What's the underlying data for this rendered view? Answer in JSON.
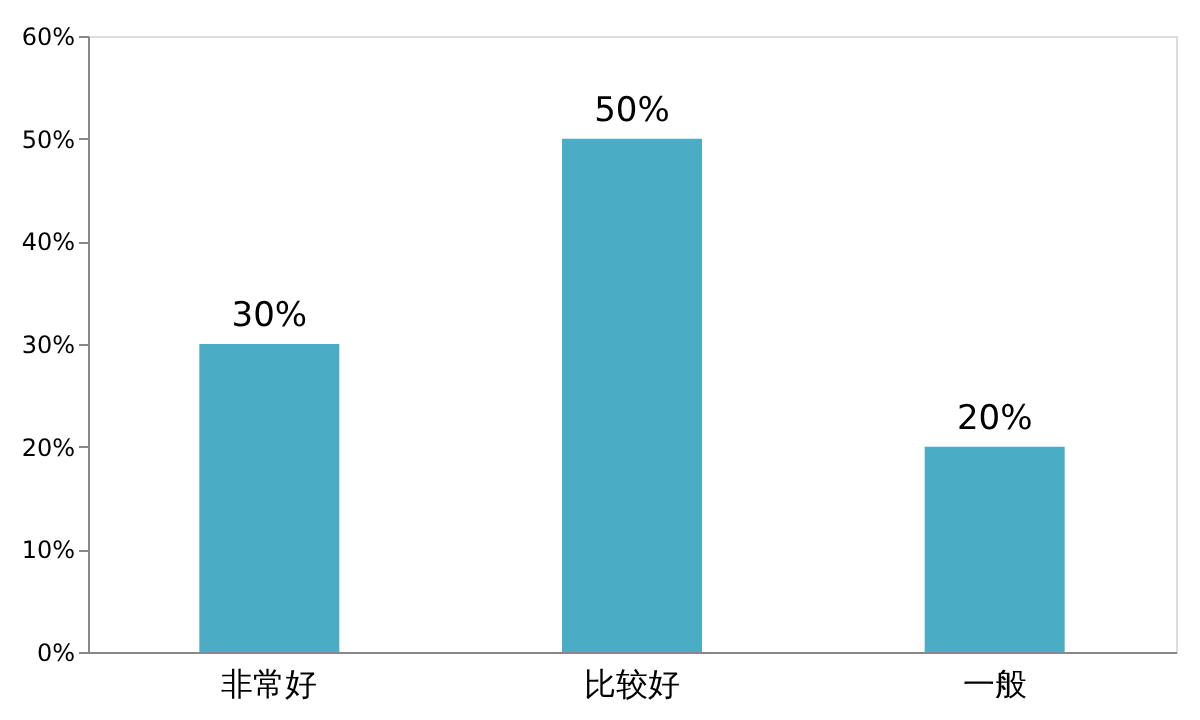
{
  "chart_data": {
    "type": "bar",
    "categories": [
      "非常好",
      "比较好",
      "一般"
    ],
    "values": [
      30,
      50,
      20
    ],
    "color": "#4bacc6",
    "ylim": [
      0,
      60
    ],
    "yticks": [
      {
        "value": 0,
        "label": "0%"
      },
      {
        "value": 10,
        "label": "10%"
      },
      {
        "value": 20,
        "label": "20%"
      },
      {
        "value": 30,
        "label": "30%"
      },
      {
        "value": 40,
        "label": "40%"
      },
      {
        "value": 50,
        "label": "50%"
      },
      {
        "value": 60,
        "label": "60%"
      }
    ],
    "value_labels": [
      "30%",
      "50%",
      "20%"
    ],
    "grid": false
  }
}
